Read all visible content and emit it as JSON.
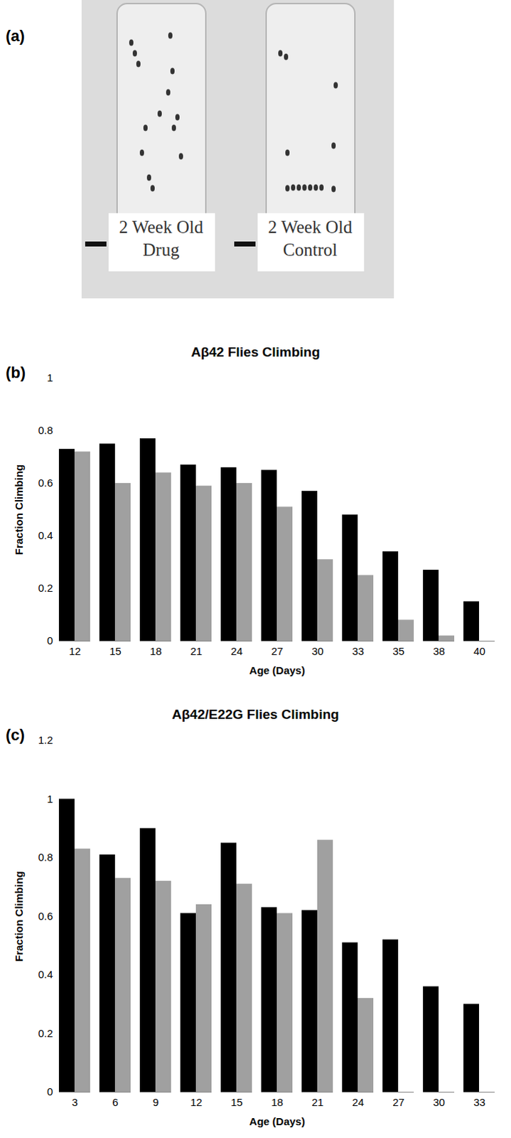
{
  "chart_data": [
    {
      "type": "image",
      "panel_label": "(a)",
      "labels": [
        "2 Week Old Drug",
        "2 Week Old Control"
      ]
    },
    {
      "type": "bar",
      "panel_label": "(b)",
      "title": "Aβ42 Flies Climbing",
      "x_label": "Age (Days)",
      "y_label": "Fraction Climbing",
      "categories": [
        "12",
        "15",
        "18",
        "21",
        "24",
        "27",
        "30",
        "33",
        "35",
        "38",
        "40"
      ],
      "series": [
        {
          "color": "#000000",
          "values": [
            0.73,
            0.75,
            0.77,
            0.67,
            0.66,
            0.65,
            0.57,
            0.48,
            0.34,
            0.27,
            0.15
          ]
        },
        {
          "color": "#a0a0a0",
          "values": [
            0.72,
            0.6,
            0.64,
            0.59,
            0.6,
            0.51,
            0.31,
            0.25,
            0.08,
            0.02,
            null
          ]
        }
      ],
      "ylim": [
        0,
        1
      ],
      "yticks": [
        0,
        0.2,
        0.4,
        0.6,
        0.8,
        1
      ]
    },
    {
      "type": "bar",
      "panel_label": "(c)",
      "title": "Aβ42/E22G Flies Climbing",
      "x_label": "Age (Days)",
      "y_label": "Fraction Climbing",
      "categories": [
        "3",
        "6",
        "9",
        "12",
        "15",
        "18",
        "21",
        "24",
        "27",
        "30",
        "33"
      ],
      "series": [
        {
          "color": "#000000",
          "values": [
            1.0,
            0.81,
            0.9,
            0.61,
            0.85,
            0.63,
            0.62,
            0.51,
            0.52,
            0.36,
            0.3
          ]
        },
        {
          "color": "#a0a0a0",
          "values": [
            0.83,
            0.73,
            0.72,
            0.64,
            0.71,
            0.61,
            0.86,
            0.32,
            null,
            null,
            null
          ]
        }
      ],
      "ylim": [
        0,
        1.2
      ],
      "yticks": [
        0,
        0.2,
        0.4,
        0.6,
        0.8,
        1,
        1.2
      ]
    }
  ]
}
